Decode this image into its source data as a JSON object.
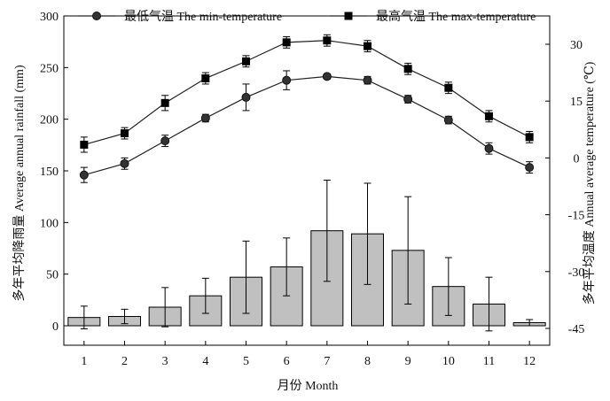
{
  "chart_data": {
    "type": "bar+line",
    "categories": [
      "1",
      "2",
      "3",
      "4",
      "5",
      "6",
      "7",
      "8",
      "9",
      "10",
      "11",
      "12"
    ],
    "xlabel": "月份 Month",
    "ylabel_left": "多年平均降雨量 Average annual rainfall (mm)",
    "ylabel_right": "多年平均温度 Annual average temperature (℃)",
    "ylim_left": [
      0,
      300
    ],
    "yticks_left": [
      0,
      50,
      100,
      150,
      200,
      250,
      300
    ],
    "ylim_right": [
      -45,
      36
    ],
    "yticks_right": [
      -45,
      -30,
      -15,
      0,
      15,
      30
    ],
    "grid": false,
    "legend_position": "top",
    "rainfall": {
      "values": [
        8,
        9,
        18,
        29,
        47,
        57,
        92,
        89,
        73,
        38,
        21,
        3
      ],
      "error": [
        11,
        7,
        19,
        17,
        35,
        28,
        49,
        49,
        52,
        28,
        26,
        3
      ],
      "color": "#c0c0c0"
    },
    "series": [
      {
        "name": "最低气温 The min-temperature",
        "marker": "circle",
        "values": [
          -4.5,
          -1.5,
          4.5,
          10.5,
          16.0,
          20.5,
          21.5,
          20.5,
          15.5,
          10.0,
          2.5,
          -2.5
        ],
        "error": [
          2.0,
          1.5,
          1.5,
          1.0,
          3.5,
          2.5,
          0.7,
          1.0,
          1.0,
          1.0,
          1.5,
          1.5
        ]
      },
      {
        "name": "最高气温 The max-temperature",
        "marker": "square",
        "values": [
          3.5,
          6.5,
          14.5,
          21.0,
          25.5,
          30.5,
          31.0,
          29.5,
          23.5,
          18.5,
          11.0,
          5.5
        ],
        "error": [
          2.0,
          1.5,
          2.0,
          1.5,
          1.5,
          1.5,
          1.5,
          1.5,
          1.5,
          1.5,
          1.5,
          1.5
        ]
      }
    ]
  }
}
